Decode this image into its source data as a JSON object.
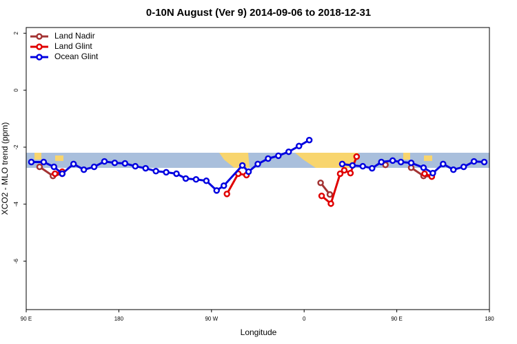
{
  "chart_data": {
    "type": "line",
    "title": "0-10N August (Ver 9)   2014-09-06 to 2018-12-31",
    "x_label": "Longitude",
    "y_label": "XCO2 - MLO trend (ppm)",
    "xlim": [
      90,
      540
    ],
    "ylim": [
      -7.7,
      2.2
    ],
    "xticks": [
      {
        "value": 90,
        "label": "90 E"
      },
      180,
      {
        "value": 270,
        "label": "90 W"
      },
      {
        "value": 360,
        "label": "0"
      },
      {
        "value": 450,
        "label": "90 E"
      },
      {
        "value": 540,
        "label": "180"
      }
    ],
    "yticks": [
      2,
      0,
      -2,
      -4,
      -6
    ],
    "legend": "top-left",
    "series": [
      {
        "name": "Land Nadir",
        "color": "#a33333",
        "x": [
          103,
          116,
          125,
          370,
          376,
          385,
          420,
          439,
          450,
          464,
          476,
          484
        ],
        "values": [
          -2.69,
          -3.01,
          -2.93,
          null,
          -3.25,
          -3.66,
          null,
          -2.62,
          null,
          -2.72,
          -3.01,
          -3.03
        ]
      },
      {
        "name": "Land Glint",
        "color": "#e00000",
        "x": [
          118,
          125,
          200,
          285,
          296,
          304,
          350,
          377,
          386,
          395,
          399,
          405,
          411,
          450,
          477,
          484
        ],
        "values": [
          -2.93,
          -2.86,
          null,
          -3.64,
          -2.93,
          -2.98,
          null,
          -3.71,
          -3.98,
          -2.93,
          -2.81,
          -2.91,
          -2.33,
          null,
          -2.93,
          -3.03
        ]
      },
      {
        "name": "Ocean Glint",
        "color": "#0000e0",
        "x": [
          95,
          107,
          117,
          125,
          136,
          146,
          156,
          166,
          176,
          186,
          196,
          206,
          216,
          226,
          236,
          245,
          255,
          265,
          275,
          282,
          300,
          306,
          315,
          325,
          335,
          345,
          355,
          365,
          380,
          397,
          407,
          417,
          426,
          435,
          446,
          454,
          464,
          476,
          485,
          495,
          505,
          515,
          525,
          535
        ],
        "values": [
          -2.52,
          -2.52,
          -2.69,
          -2.93,
          -2.59,
          -2.79,
          -2.69,
          -2.5,
          -2.55,
          -2.57,
          -2.67,
          -2.74,
          -2.84,
          -2.88,
          -2.93,
          -3.1,
          -3.13,
          -3.18,
          -3.52,
          -3.35,
          -2.64,
          -2.86,
          -2.59,
          -2.4,
          -2.3,
          -2.16,
          -1.96,
          -1.75,
          null,
          -2.59,
          -2.64,
          -2.67,
          -2.74,
          -2.52,
          -2.47,
          -2.52,
          -2.55,
          -2.72,
          -2.91,
          -2.59,
          -2.79,
          -2.69,
          -2.5,
          -2.52
        ]
      }
    ]
  }
}
